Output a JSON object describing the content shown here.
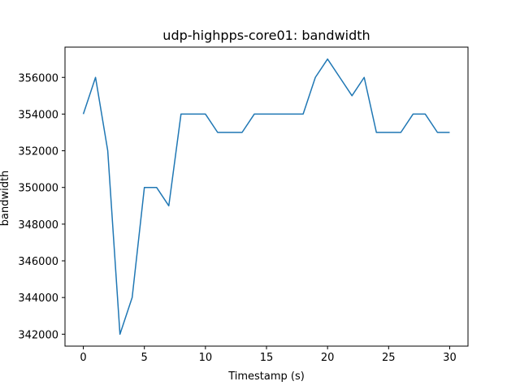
{
  "chart_data": {
    "type": "line",
    "title": "udp-highpps-core01: bandwidth",
    "xlabel": "Timestamp (s)",
    "ylabel": "bandwidth",
    "xlim": [
      -1.5,
      31.5
    ],
    "ylim": [
      341350,
      357650
    ],
    "xticks": [
      0,
      5,
      10,
      15,
      20,
      25,
      30
    ],
    "yticks": [
      342000,
      344000,
      346000,
      348000,
      350000,
      352000,
      354000,
      356000
    ],
    "grid": false,
    "line_color": "#1f77b4",
    "series": [
      {
        "name": "bandwidth",
        "x": [
          0,
          1,
          2,
          3,
          4,
          5,
          6,
          7,
          8,
          9,
          10,
          11,
          12,
          13,
          14,
          15,
          16,
          17,
          18,
          19,
          20,
          21,
          22,
          23,
          24,
          25,
          26,
          27,
          28,
          29,
          30
        ],
        "values": [
          354000,
          356000,
          352000,
          342000,
          344000,
          350000,
          350000,
          349000,
          354000,
          354000,
          354000,
          353000,
          353000,
          353000,
          354000,
          354000,
          354000,
          354000,
          354000,
          356000,
          357000,
          356000,
          355000,
          356000,
          353000,
          353000,
          353000,
          354000,
          354000,
          353000,
          353000
        ]
      }
    ]
  }
}
